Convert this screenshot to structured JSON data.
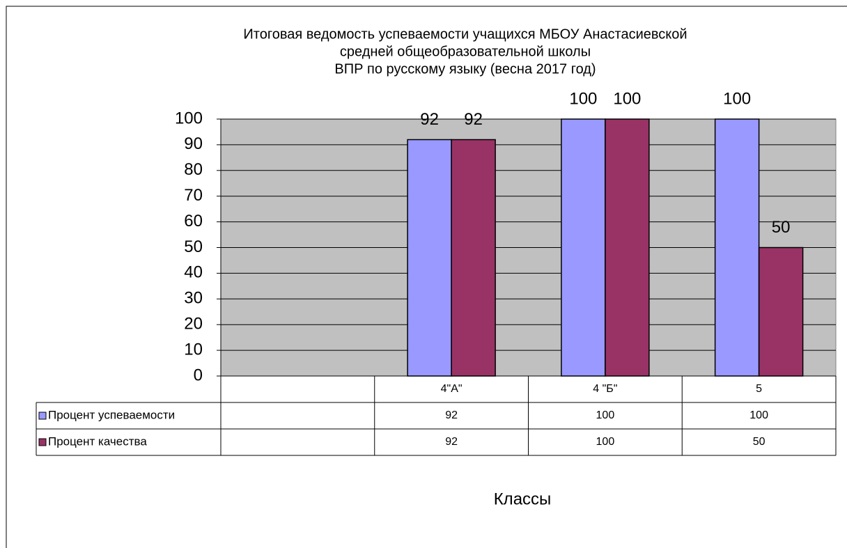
{
  "chart_data": {
    "type": "bar",
    "title": [
      "Итоговая ведомость успеваемости учащихся  МБОУ Анастасиевской",
      "средней общеобразовательной школы",
      "ВПР по русскому языку (весна 2017 год)"
    ],
    "x_label": "Классы",
    "categories": [
      null,
      "4\"А\"",
      "4 \"Б\"",
      "5"
    ],
    "series": [
      {
        "name": "Процент успеваемости",
        "color": "#9999ff",
        "values": [
          null,
          92,
          100,
          100
        ]
      },
      {
        "name": "Процент качества",
        "color": "#993366",
        "values": [
          null,
          92,
          100,
          50
        ]
      }
    ],
    "ylim": [
      0,
      100
    ],
    "yticks": [
      0,
      10,
      20,
      30,
      40,
      50,
      60,
      70,
      80,
      90,
      100
    ],
    "grid": true,
    "plot_background": "#c0c0c0"
  }
}
